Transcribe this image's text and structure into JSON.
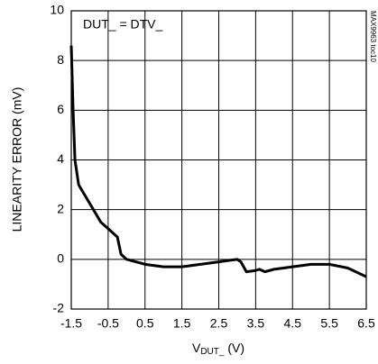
{
  "chart_data": {
    "type": "line",
    "annotation": "DUT_ = DTV_",
    "side_note": "MAX9963 toc10",
    "y_label": "LINEARITY ERROR (mV)",
    "x_label": {
      "main": "V",
      "sub": "DUT_",
      "unit": " (V)"
    },
    "x": [
      -1.5,
      -1.45,
      -1.4,
      -1.3,
      -1.1,
      -0.9,
      -0.7,
      -0.4,
      -0.25,
      -0.15,
      0.0,
      0.5,
      1.0,
      1.5,
      2.0,
      2.5,
      3.0,
      3.1,
      3.25,
      3.5,
      3.6,
      3.75,
      4.0,
      4.5,
      5.0,
      5.5,
      6.0,
      6.5
    ],
    "values": [
      8.6,
      6.0,
      4.0,
      3.0,
      2.5,
      2.0,
      1.5,
      1.1,
      0.9,
      0.2,
      0.0,
      -0.2,
      -0.3,
      -0.3,
      -0.2,
      -0.1,
      0.0,
      -0.1,
      -0.5,
      -0.45,
      -0.4,
      -0.5,
      -0.4,
      -0.3,
      -0.2,
      -0.2,
      -0.35,
      -0.7
    ],
    "color": "#000000",
    "xlim": [
      -1.5,
      6.5
    ],
    "xticks": [
      -1.5,
      -0.5,
      0.5,
      1.5,
      2.5,
      3.5,
      4.5,
      5.5,
      6.5
    ],
    "ylim": [
      -2,
      10
    ],
    "yticks": [
      -2,
      0,
      2,
      4,
      6,
      8,
      10
    ],
    "grid": true
  }
}
